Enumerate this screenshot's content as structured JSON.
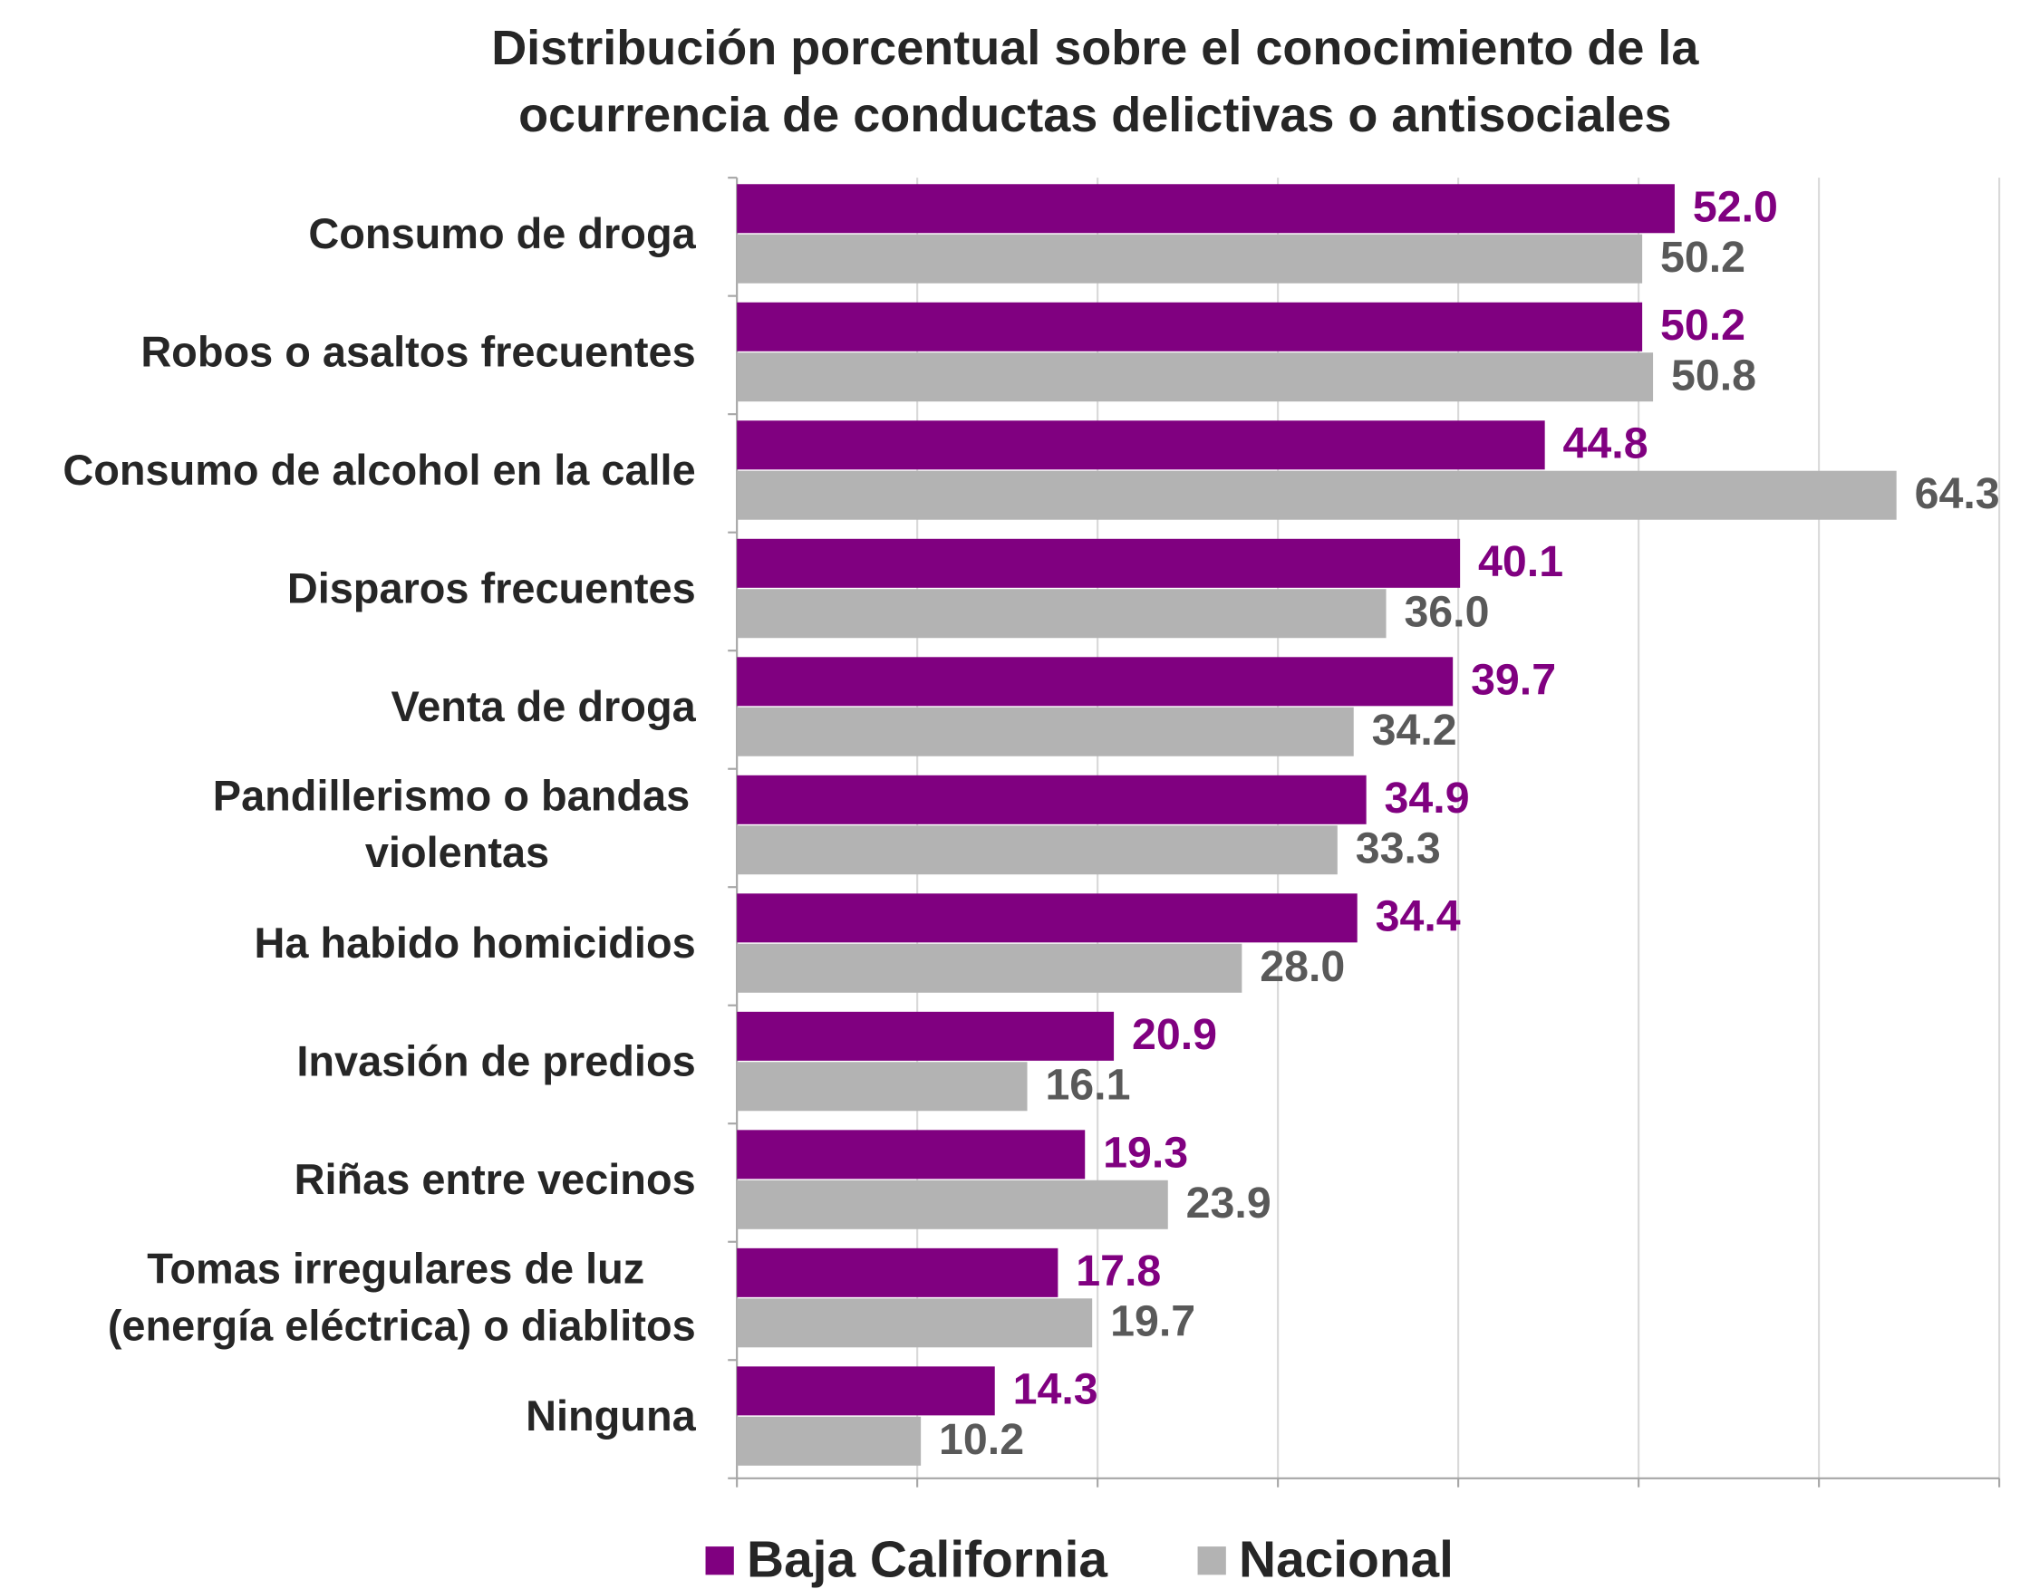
{
  "chart_data": {
    "type": "hbar",
    "title": [
      "Distribución porcentual sobre el conocimiento de la",
      "ocurrencia de conductas delictivas o antisociales"
    ],
    "categories": [
      "Consumo de droga",
      "Robos o asaltos frecuentes",
      "Consumo de alcohol en la calle",
      "Disparos frecuentes",
      "Venta de droga",
      "Pandillerismo o bandas violentas",
      "Ha habido homicidios",
      "Invasión de predios",
      "Riñas entre vecinos",
      "Tomas irregulares de luz (energía eléctrica) o diablitos",
      "Ninguna"
    ],
    "series": [
      {
        "name": "Baja California",
        "color": "#800080",
        "values": [
          52.0,
          50.2,
          44.8,
          40.1,
          39.7,
          34.9,
          34.4,
          20.9,
          19.3,
          17.8,
          14.3
        ],
        "value_labels": [
          "52.0",
          "50.2",
          "44.8",
          "40.1",
          "39.7",
          "34.9",
          "34.4",
          "20.9",
          "19.3",
          "17.8",
          "14.3"
        ]
      },
      {
        "name": "Nacional",
        "color": "#b3b3b3",
        "values": [
          50.2,
          50.8,
          64.3,
          36.0,
          34.2,
          33.3,
          28.0,
          16.1,
          23.9,
          19.7,
          10.2
        ],
        "value_labels": [
          "50.2",
          "50.8",
          "64.3",
          "36.0",
          "34.2",
          "33.3",
          "28.0",
          "16.1",
          "23.9",
          "19.7",
          "10.2"
        ]
      }
    ],
    "xlim": [
      0,
      70
    ],
    "xticks": [
      0,
      10,
      20,
      30,
      40,
      50,
      60,
      70
    ],
    "grid": true,
    "legend": "bottom"
  }
}
